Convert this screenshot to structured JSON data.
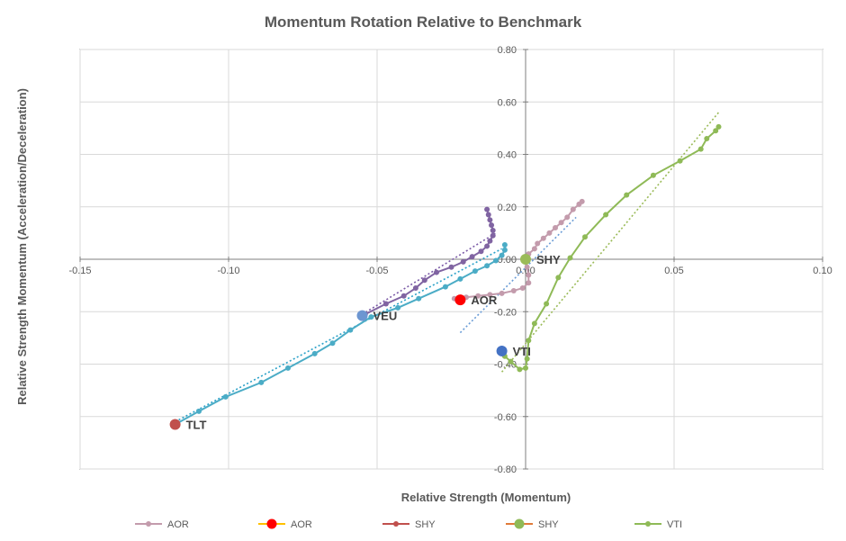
{
  "chart_data": {
    "type": "scatter",
    "title": "Momentum Rotation Relative to Benchmark",
    "xlabel": "Relative Strength (Momentum)",
    "ylabel": "Relative Strength Momentum (Acceleration/Deceleration)",
    "xlim": [
      -0.15,
      0.1
    ],
    "ylim": [
      -0.8,
      0.8
    ],
    "x_ticks": [
      "-0.15",
      "-0.10",
      "-0.05",
      "0.00",
      "0.05",
      "0.10"
    ],
    "y_ticks": [
      "0.80",
      "0.60",
      "0.40",
      "0.20",
      "0.00",
      "-0.20",
      "-0.40",
      "-0.60",
      "-0.80"
    ],
    "grid": true,
    "legend_position": "bottom",
    "legend": [
      {
        "label": "AOR",
        "color": "#c39bac",
        "marker": "small"
      },
      {
        "label": "AOR",
        "color": "#ff0000",
        "line_color": "#ffc000",
        "marker": "large"
      },
      {
        "label": "SHY",
        "color": "#c0504d",
        "marker": "small"
      },
      {
        "label": "SHY",
        "color": "#8fba57",
        "line_color": "#e07b39",
        "marker": "large"
      },
      {
        "label": "VTI",
        "color": "#8fba57",
        "marker": "small"
      }
    ],
    "series": [
      {
        "name": "AOR",
        "color": "#c39bac",
        "points": [
          [
            0.019,
            0.22
          ],
          [
            0.018,
            0.21
          ],
          [
            0.016,
            0.19
          ],
          [
            0.014,
            0.16
          ],
          [
            0.012,
            0.14
          ],
          [
            0.01,
            0.12
          ],
          [
            0.008,
            0.1
          ],
          [
            0.006,
            0.08
          ],
          [
            0.004,
            0.06
          ],
          [
            0.003,
            0.04
          ],
          [
            0.001,
            0.02
          ],
          [
            0.0,
            0.0
          ],
          [
            0.0005,
            -0.03
          ],
          [
            0.001,
            -0.06
          ],
          [
            0.001,
            -0.09
          ],
          [
            -0.001,
            -0.11
          ],
          [
            -0.004,
            -0.12
          ],
          [
            -0.008,
            -0.13
          ],
          [
            -0.012,
            -0.135
          ],
          [
            -0.016,
            -0.14
          ],
          [
            -0.02,
            -0.145
          ],
          [
            -0.024,
            -0.15
          ]
        ]
      },
      {
        "name": "SHY",
        "color": "#8064a2",
        "points": [
          [
            -0.054,
            -0.21
          ],
          [
            -0.047,
            -0.17
          ],
          [
            -0.041,
            -0.14
          ],
          [
            -0.037,
            -0.11
          ],
          [
            -0.034,
            -0.08
          ],
          [
            -0.03,
            -0.05
          ],
          [
            -0.025,
            -0.03
          ],
          [
            -0.021,
            -0.01
          ],
          [
            -0.018,
            0.01
          ],
          [
            -0.015,
            0.03
          ],
          [
            -0.013,
            0.05
          ],
          [
            -0.012,
            0.07
          ],
          [
            -0.011,
            0.09
          ],
          [
            -0.011,
            0.11
          ],
          [
            -0.0115,
            0.13
          ],
          [
            -0.012,
            0.15
          ],
          [
            -0.0125,
            0.17
          ],
          [
            -0.013,
            0.19
          ]
        ]
      },
      {
        "name": "TLT",
        "color": "#4bacc6",
        "points": [
          [
            -0.118,
            -0.63
          ],
          [
            -0.11,
            -0.58
          ],
          [
            -0.101,
            -0.525
          ],
          [
            -0.089,
            -0.47
          ],
          [
            -0.08,
            -0.415
          ],
          [
            -0.071,
            -0.36
          ],
          [
            -0.065,
            -0.32
          ],
          [
            -0.059,
            -0.27
          ],
          [
            -0.052,
            -0.22
          ],
          [
            -0.043,
            -0.185
          ],
          [
            -0.036,
            -0.15
          ],
          [
            -0.027,
            -0.105
          ],
          [
            -0.022,
            -0.075
          ],
          [
            -0.017,
            -0.045
          ],
          [
            -0.013,
            -0.025
          ],
          [
            -0.01,
            -0.005
          ],
          [
            -0.008,
            0.015
          ],
          [
            -0.007,
            0.035
          ],
          [
            -0.007,
            0.055
          ]
        ]
      },
      {
        "name": "VTI",
        "color": "#8fba57",
        "points": [
          [
            0.065,
            0.505
          ],
          [
            0.064,
            0.49
          ],
          [
            0.061,
            0.46
          ],
          [
            0.059,
            0.42
          ],
          [
            0.052,
            0.375
          ],
          [
            0.043,
            0.32
          ],
          [
            0.034,
            0.245
          ],
          [
            0.027,
            0.17
          ],
          [
            0.02,
            0.085
          ],
          [
            0.015,
            0.005
          ],
          [
            0.011,
            -0.07
          ],
          [
            0.007,
            -0.17
          ],
          [
            0.003,
            -0.245
          ],
          [
            0.001,
            -0.31
          ],
          [
            0.0005,
            -0.38
          ],
          [
            0.0,
            -0.415
          ],
          [
            -0.002,
            -0.42
          ],
          [
            -0.005,
            -0.39
          ],
          [
            -0.007,
            -0.37
          ]
        ]
      }
    ],
    "trendlines": [
      {
        "series": "AOR",
        "color": "#6a9cd6",
        "from": [
          -0.022,
          -0.28
        ],
        "to": [
          0.017,
          0.16
        ]
      },
      {
        "series": "SHY",
        "color": "#7a5aa6",
        "from": [
          -0.055,
          -0.21
        ],
        "to": [
          -0.01,
          0.1
        ]
      },
      {
        "series": "TLT",
        "color": "#2aa1c8",
        "from": [
          -0.118,
          -0.62
        ],
        "to": [
          -0.008,
          0.04
        ]
      },
      {
        "series": "VTI",
        "color": "#9bbb59",
        "from": [
          -0.008,
          -0.43
        ],
        "to": [
          0.065,
          0.56
        ]
      }
    ],
    "current_points": [
      {
        "label": "SHY",
        "x": 0.0,
        "y": 0.0,
        "color": "#9bbb59"
      },
      {
        "label": "AOR",
        "x": -0.022,
        "y": -0.155,
        "color": "#ff0000"
      },
      {
        "label": "VEU",
        "x": -0.055,
        "y": -0.215,
        "color": "#6d96d1"
      },
      {
        "label": "VTI",
        "x": -0.008,
        "y": -0.35,
        "color": "#4472c4"
      },
      {
        "label": "TLT",
        "x": -0.118,
        "y": -0.63,
        "color": "#c0504d"
      }
    ]
  }
}
